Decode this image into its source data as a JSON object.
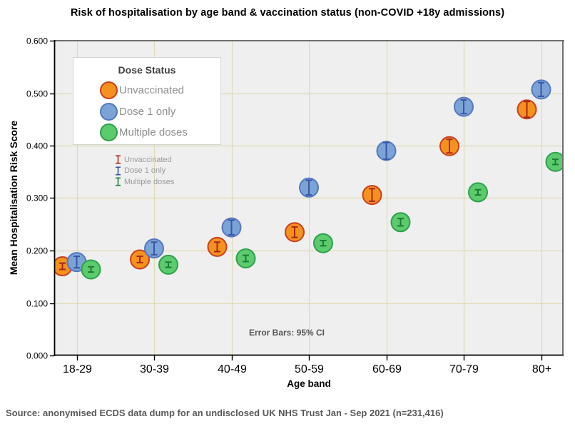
{
  "title": "Risk of hospitalisation by age band & vaccination status (non-COVID +18y admissions)",
  "footer": "Source: anonymised ECDS data dump for an undisclosed UK NHS Trust Jan - Sep 2021 (n=231,416)",
  "annotations": {
    "error_note": "Error Bars: 95% CI"
  },
  "legend": {
    "title": "Dose Status",
    "items": [
      {
        "label": "Unvaccinated",
        "fill": "#F5921E",
        "border": "#C8401E"
      },
      {
        "label": "Dose 1 only",
        "fill": "#7CA3D6",
        "border": "#5578C0"
      },
      {
        "label": "Multiple doses",
        "fill": "#5CCB6E",
        "border": "#2FA14C"
      }
    ]
  },
  "error_bar_legend": {
    "items": [
      {
        "label": "Unvaccinated",
        "color": "#A6281A"
      },
      {
        "label": "Dose 1 only",
        "color": "#3A55A4"
      },
      {
        "label": "Multiple doses",
        "color": "#1D7D35"
      }
    ]
  },
  "colors": {
    "plot_bg": "#EFEFEF",
    "gridline": "#DFDAB4",
    "frame": "#6E6E6E",
    "axis": "#000000",
    "tick_label": "#000000"
  },
  "chart_data": {
    "type": "scatter",
    "title": "Risk of hospitalisation by age band & vaccination status (non-COVID +18y admissions)",
    "xlabel": "Age band",
    "ylabel": "Mean Hospitalisation Risk Score",
    "categories": [
      "18-29",
      "30-39",
      "40-49",
      "50-59",
      "60-69",
      "70-79",
      "80+"
    ],
    "ylim": [
      0.0,
      0.6
    ],
    "ytick_step": 0.1,
    "ytick_labels": [
      "0.000",
      "0.100",
      "0.200",
      "0.300",
      "0.400",
      "0.500",
      "0.600"
    ],
    "grid": true,
    "legend_position": "inside-top-left",
    "error_bars": "95% CI",
    "series": [
      {
        "name": "Unvaccinated",
        "fill": "#F5921E",
        "border": "#C8401E",
        "error_color": "#A6281A",
        "values": [
          0.17,
          0.183,
          0.207,
          0.235,
          0.306,
          0.399,
          0.469
        ],
        "ci95_half_width": [
          0.006,
          0.006,
          0.009,
          0.01,
          0.012,
          0.013,
          0.015
        ]
      },
      {
        "name": "Dose 1 only",
        "fill": "#7CA3D6",
        "border": "#5578C0",
        "error_color": "#3A55A4",
        "values": [
          0.178,
          0.204,
          0.244,
          0.32,
          0.39,
          0.474,
          0.507
        ],
        "ci95_half_width": [
          0.011,
          0.012,
          0.014,
          0.014,
          0.016,
          0.013,
          0.013
        ]
      },
      {
        "name": "Multiple doses",
        "fill": "#5CCB6E",
        "border": "#2FA14C",
        "error_color": "#1D7D35",
        "values": [
          0.164,
          0.173,
          0.185,
          0.214,
          0.254,
          0.311,
          0.369
        ],
        "ci95_half_width": [
          0.005,
          0.005,
          0.006,
          0.005,
          0.007,
          0.005,
          0.005
        ]
      }
    ]
  }
}
